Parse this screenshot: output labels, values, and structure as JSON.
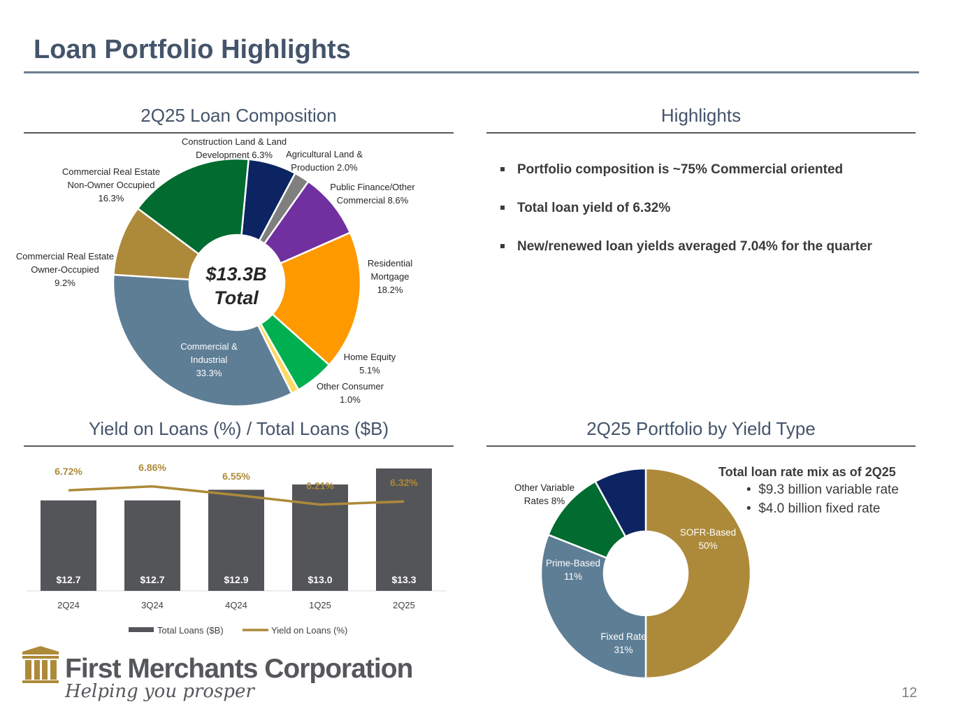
{
  "page": {
    "title": "Loan Portfolio Highlights",
    "page_number": "12"
  },
  "composition": {
    "heading": "2Q25 Loan Composition",
    "center_line1": "$13.3B",
    "center_line2": "Total"
  },
  "highlights": {
    "heading": "Highlights",
    "bullets": [
      "Portfolio composition is ~75% Commercial oriented",
      "Total loan yield of 6.32%",
      "New/renewed loan yields averaged 7.04% for the quarter"
    ]
  },
  "yield_section": {
    "heading": "Yield on Loans (%) / Total Loans ($B)"
  },
  "yield_type": {
    "heading": "2Q25 Portfolio by Yield Type",
    "mix_title": "Total loan rate mix as of 2Q25",
    "mix_items": [
      "$9.3 billion variable rate",
      "$4.0 billion fixed rate"
    ]
  },
  "brand": {
    "name": "First Merchants Corporation",
    "tagline": "Helping you prosper",
    "gold": "#ad8a3a",
    "slate": "#44546a"
  },
  "chart_data": [
    {
      "type": "pie",
      "title": "2Q25 Loan Composition",
      "slices": [
        {
          "label": "Construction Land & Land\nDevelopment 6.3%",
          "value": 6.3,
          "color": "#0c2461"
        },
        {
          "label": "Agricultural Land &\nProduction 2.0%",
          "value": 2.0,
          "color": "#7f7f7f"
        },
        {
          "label": "Public Finance/Other\nCommercial 8.6%",
          "value": 8.6,
          "color": "#7030a0"
        },
        {
          "label": "Residential\nMortgage\n18.2%",
          "value": 18.2,
          "color": "#ff9900"
        },
        {
          "label": "Home Equity\n5.1%",
          "value": 5.1,
          "color": "#00b050"
        },
        {
          "label": "Other Consumer\n1.0%",
          "value": 1.0,
          "color": "#ffd966"
        },
        {
          "label": "Commercial &\nIndustrial\n33.3%",
          "value": 33.3,
          "color": "#5e7e96"
        },
        {
          "label": "Commercial Real Estate\nOwner-Occupied\n9.2%",
          "value": 9.2,
          "color": "#ad8a3a"
        },
        {
          "label": "Commercial Real Estate\nNon-Owner Occupied\n16.3%",
          "value": 16.3,
          "color": "#026b2f"
        }
      ]
    },
    {
      "type": "bar",
      "title": "Yield on Loans (%) / Total Loans ($B)",
      "categories": [
        "2Q24",
        "3Q24",
        "4Q24",
        "1Q25",
        "2Q25"
      ],
      "series": [
        {
          "name": "Total Loans ($B)",
          "type": "bar",
          "values": [
            12.7,
            12.7,
            12.9,
            13.0,
            13.3
          ],
          "labels": [
            "$12.7",
            "$12.7",
            "$12.9",
            "$13.0",
            "$13.3"
          ],
          "color": "#545559"
        },
        {
          "name": "Yield on Loans (%)",
          "type": "line",
          "values": [
            6.72,
            6.86,
            6.55,
            6.21,
            6.32
          ],
          "labels": [
            "6.72%",
            "6.86%",
            "6.55%",
            "6.21%",
            "6.32%"
          ],
          "color": "#ad8a3a"
        }
      ],
      "legend": [
        "Total Loans ($B)",
        "Yield on Loans (%)"
      ],
      "legend_position": "bottom"
    },
    {
      "type": "pie",
      "title": "2Q25 Portfolio by Yield Type",
      "slices": [
        {
          "label": "SOFR-Based\n50%",
          "value": 50,
          "color": "#ad8a3a"
        },
        {
          "label": "Fixed Rate\n31%",
          "value": 31,
          "color": "#5e7e96"
        },
        {
          "label": "Prime-Based\n11%",
          "value": 11,
          "color": "#026b2f"
        },
        {
          "label": "Other Variable\nRates 8%",
          "value": 8,
          "color": "#0c2461"
        }
      ]
    }
  ]
}
